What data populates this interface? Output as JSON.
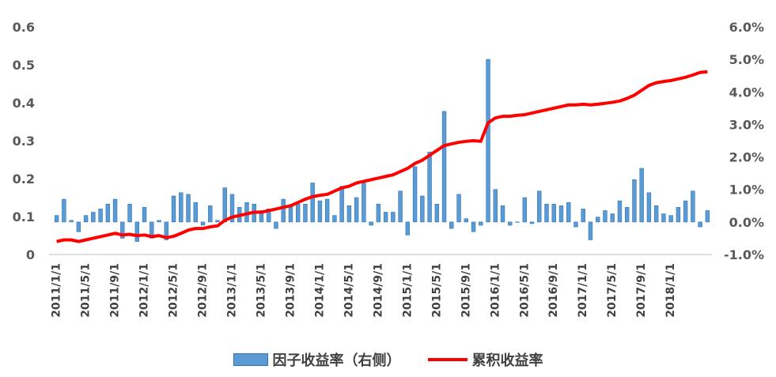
{
  "chart_data": {
    "type": "bar+line",
    "colors": {
      "bar_fill": "#5b9bd5",
      "bar_stroke": "#2e75b6",
      "line": "#ff0000",
      "axis_text": "#595959"
    },
    "left_axis": {
      "ylim": [
        0,
        0.6
      ],
      "ticks": [
        "0",
        "0.1",
        "0.2",
        "0.3",
        "0.4",
        "0.5",
        "0.6"
      ],
      "tick_values": [
        0,
        0.1,
        0.2,
        0.3,
        0.4,
        0.5,
        0.6
      ]
    },
    "right_axis": {
      "ylim": [
        -1.0,
        6.0
      ],
      "ticks": [
        "-1.0%",
        "0.0%",
        "1.0%",
        "2.0%",
        "3.0%",
        "4.0%",
        "5.0%",
        "6.0%"
      ],
      "tick_values": [
        -1,
        0,
        1,
        2,
        3,
        4,
        5,
        6
      ]
    },
    "x_tick_labels": [
      "2011/1/1",
      "2011/5/1",
      "2011/9/1",
      "2012/1/1",
      "2012/5/1",
      "2012/9/1",
      "2013/1/1",
      "2013/5/1",
      "2013/9/1",
      "2014/1/1",
      "2014/5/1",
      "2014/9/1",
      "2015/1/1",
      "2015/5/1",
      "2015/9/1",
      "2016/1/1",
      "2016/5/1",
      "2016/9/1",
      "2017/1/1",
      "2017/5/1",
      "2017/9/1",
      "2018/1/1"
    ],
    "legend_position": "bottom",
    "series": [
      {
        "name": "因子收益率（右侧）",
        "type": "bar",
        "axis": "right",
        "values": [
          0.2,
          0.7,
          0.05,
          -0.3,
          0.2,
          0.3,
          0.4,
          0.55,
          0.7,
          -0.5,
          0.55,
          -0.6,
          0.45,
          -0.5,
          0.05,
          -0.55,
          0.8,
          0.9,
          0.85,
          0.6,
          -0.1,
          0.5,
          0.05,
          1.05,
          0.85,
          0.45,
          0.6,
          0.55,
          0.35,
          0.4,
          -0.2,
          0.7,
          0.5,
          0.55,
          0.55,
          1.2,
          0.65,
          0.7,
          0.2,
          1.1,
          0.5,
          0.75,
          1.2,
          -0.1,
          0.55,
          0.3,
          0.3,
          0.95,
          -0.4,
          1.7,
          0.8,
          2.15,
          0.55,
          3.4,
          -0.2,
          0.85,
          0.1,
          -0.3,
          -0.1,
          5.0,
          1.0,
          0.5,
          -0.1,
          0,
          0.75,
          -0.05,
          0.95,
          0.55,
          0.55,
          0.5,
          0.6,
          -0.15,
          0.4,
          -0.55,
          0.15,
          0.35,
          0.25,
          0.65,
          0.45,
          1.3,
          1.65,
          0.9,
          0.5,
          0.25,
          0.2,
          0.45,
          0.65,
          0.95,
          -0.15,
          0.35
        ],
        "tail": "ok"
      },
      {
        "name": "累积收益率",
        "type": "line",
        "axis": "right",
        "values": [
          -0.6,
          -0.55,
          -0.55,
          -0.6,
          -0.55,
          -0.5,
          -0.45,
          -0.4,
          -0.35,
          -0.4,
          -0.38,
          -0.42,
          -0.4,
          -0.45,
          -0.42,
          -0.48,
          -0.44,
          -0.35,
          -0.25,
          -0.2,
          -0.2,
          -0.15,
          -0.12,
          0.05,
          0.15,
          0.2,
          0.25,
          0.3,
          0.3,
          0.35,
          0.4,
          0.45,
          0.5,
          0.6,
          0.7,
          0.78,
          0.82,
          0.85,
          0.95,
          1.05,
          1.1,
          1.2,
          1.25,
          1.3,
          1.35,
          1.4,
          1.45,
          1.55,
          1.65,
          1.8,
          1.9,
          2.05,
          2.2,
          2.35,
          2.4,
          2.45,
          2.48,
          2.5,
          2.48,
          3.05,
          3.2,
          3.25,
          3.25,
          3.28,
          3.3,
          3.35,
          3.4,
          3.45,
          3.5,
          3.55,
          3.6,
          3.6,
          3.62,
          3.6,
          3.62,
          3.65,
          3.68,
          3.72,
          3.8,
          3.9,
          4.05,
          4.2,
          4.28,
          4.32,
          4.35,
          4.4,
          4.45,
          4.52,
          4.6,
          4.62
        ]
      }
    ]
  }
}
